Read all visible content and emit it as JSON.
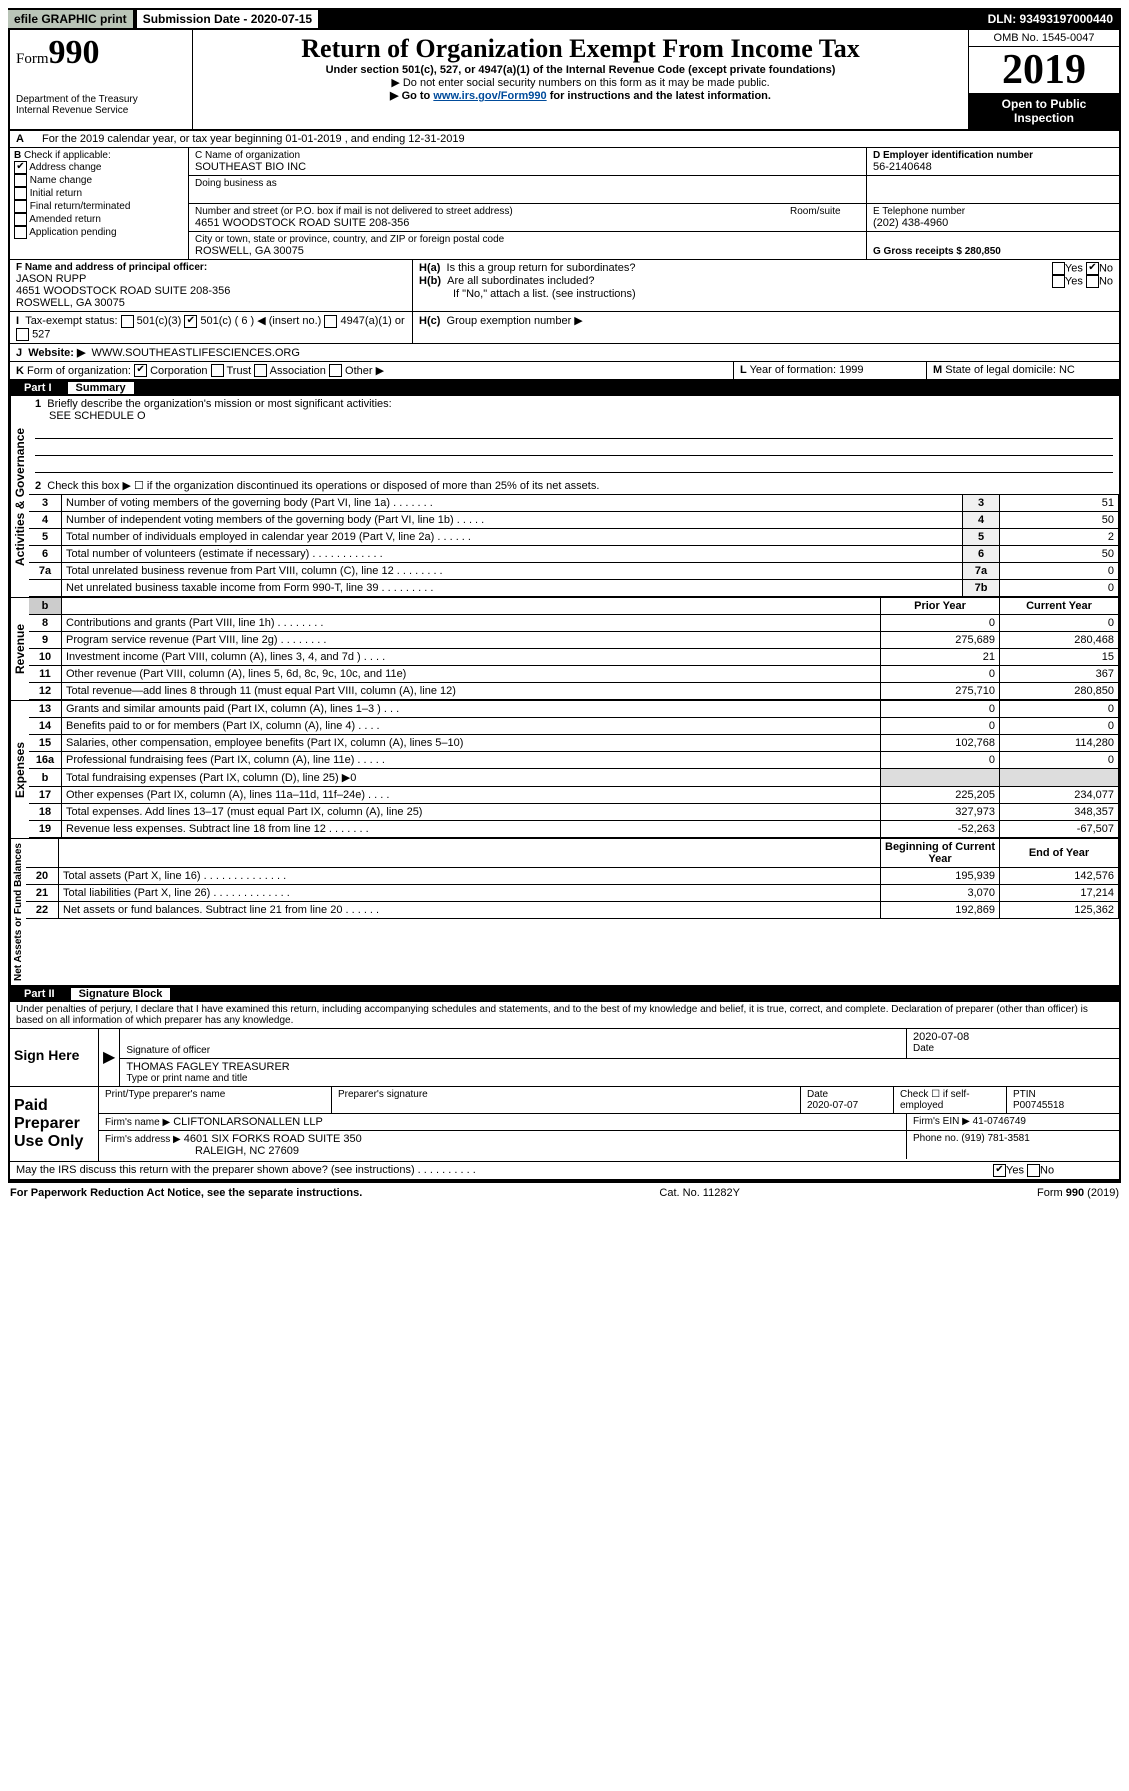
{
  "topbar": {
    "efile": "efile GRAPHIC print",
    "subdate_label": "Submission Date - 2020-07-15",
    "dln": "DLN: 93493197000440"
  },
  "header": {
    "form_label": "Form",
    "form_num": "990",
    "dept": "Department of the Treasury",
    "irs": "Internal Revenue Service",
    "title": "Return of Organization Exempt From Income Tax",
    "sub": "Under section 501(c), 527, or 4947(a)(1) of the Internal Revenue Code (except private foundations)",
    "sub2": "▶ Do not enter social security numbers on this form as it may be made public.",
    "sub3a": "▶ Go to ",
    "sub3b": "www.irs.gov/Form990",
    "sub3c": " for instructions and the latest information.",
    "omb": "OMB No. 1545-0047",
    "year": "2019",
    "open1": "Open to Public",
    "open2": "Inspection"
  },
  "A": {
    "text": "For the 2019 calendar year, or tax year beginning 01-01-2019   , and ending 12-31-2019"
  },
  "B": {
    "label": "Check if applicable:",
    "items": [
      {
        "label": "Address change",
        "checked": true
      },
      {
        "label": "Name change",
        "checked": false
      },
      {
        "label": "Initial return",
        "checked": false
      },
      {
        "label": "Final return/terminated",
        "checked": false
      },
      {
        "label": "Amended return",
        "checked": false
      },
      {
        "label": "Application pending",
        "checked": false
      }
    ]
  },
  "C": {
    "name_label": "C Name of organization",
    "name": "SOUTHEAST BIO INC",
    "dba_label": "Doing business as",
    "street_label": "Number and street (or P.O. box if mail is not delivered to street address)",
    "room_label": "Room/suite",
    "street": "4651 WOODSTOCK ROAD SUITE 208-356",
    "city_label": "City or town, state or province, country, and ZIP or foreign postal code",
    "city": "ROSWELL, GA  30075"
  },
  "D": {
    "label": "D Employer identification number",
    "value": "56-2140648"
  },
  "E": {
    "label": "E Telephone number",
    "value": "(202) 438-4960"
  },
  "G": {
    "label": "G Gross receipts $ 280,850"
  },
  "F": {
    "label": "F  Name and address of principal officer:",
    "name": "JASON RUPP",
    "addr1": "4651 WOODSTOCK ROAD SUITE 208-356",
    "addr2": "ROSWELL, GA  30075"
  },
  "H": {
    "a": "Is this a group return for subordinates?",
    "b": "Are all subordinates included?",
    "b2": "If \"No,\" attach a list. (see instructions)",
    "c": "Group exemption number ▶"
  },
  "I": {
    "label": "Tax-exempt status:",
    "opts": [
      "501(c)(3)",
      "501(c) ( 6 ) ◀ (insert no.)",
      "4947(a)(1) or",
      "527"
    ]
  },
  "J": {
    "label": "Website: ▶",
    "value": "WWW.SOUTHEASTLIFESCIENCES.ORG"
  },
  "K": {
    "label": "Form of organization:",
    "opts": [
      "Corporation",
      "Trust",
      "Association",
      "Other ▶"
    ]
  },
  "L": {
    "label": "Year of formation: 1999"
  },
  "M": {
    "label": "State of legal domicile: NC"
  },
  "part1": {
    "num": "Part I",
    "title": "Summary",
    "line1_label": "Briefly describe the organization's mission or most significant activities:",
    "line1_value": "SEE SCHEDULE O",
    "line2": "Check this box ▶ ☐  if the organization discontinued its operations or disposed of more than 25% of its net assets.",
    "sections": {
      "ag": "Activities & Governance",
      "rev": "Revenue",
      "exp": "Expenses",
      "na": "Net Assets or Fund Balances"
    },
    "rows_ag": [
      {
        "n": "3",
        "d": "Number of voting members of the governing body (Part VI, line 1a)  .   .   .   .   .   .   .",
        "b": "3",
        "v": "51"
      },
      {
        "n": "4",
        "d": "Number of independent voting members of the governing body (Part VI, line 1b)  .   .   .   .   .",
        "b": "4",
        "v": "50"
      },
      {
        "n": "5",
        "d": "Total number of individuals employed in calendar year 2019 (Part V, line 2a)  .   .   .   .   .   .",
        "b": "5",
        "v": "2"
      },
      {
        "n": "6",
        "d": "Total number of volunteers (estimate if necessary)  .   .   .   .   .   .   .   .   .   .   .   .",
        "b": "6",
        "v": "50"
      },
      {
        "n": "7a",
        "d": "Total unrelated business revenue from Part VIII, column (C), line 12  .   .   .   .   .   .   .   .",
        "b": "7a",
        "v": "0"
      },
      {
        "n": "",
        "d": "Net unrelated business taxable income from Form 990-T, line 39  .   .   .   .   .   .   .   .   .",
        "b": "7b",
        "v": "0"
      }
    ],
    "header_py": "Prior Year",
    "header_cy": "Current Year",
    "rows_rev": [
      {
        "n": "8",
        "d": "Contributions and grants (Part VIII, line 1h)  .   .   .   .   .   .   .   .",
        "py": "0",
        "cy": "0"
      },
      {
        "n": "9",
        "d": "Program service revenue (Part VIII, line 2g)  .   .   .   .   .   .   .   .",
        "py": "275,689",
        "cy": "280,468"
      },
      {
        "n": "10",
        "d": "Investment income (Part VIII, column (A), lines 3, 4, and 7d )  .   .   .   .",
        "py": "21",
        "cy": "15"
      },
      {
        "n": "11",
        "d": "Other revenue (Part VIII, column (A), lines 5, 6d, 8c, 9c, 10c, and 11e)",
        "py": "0",
        "cy": "367"
      },
      {
        "n": "12",
        "d": "Total revenue—add lines 8 through 11 (must equal Part VIII, column (A), line 12)",
        "py": "275,710",
        "cy": "280,850"
      }
    ],
    "rows_exp": [
      {
        "n": "13",
        "d": "Grants and similar amounts paid (Part IX, column (A), lines 1–3 )  .   .   .",
        "py": "0",
        "cy": "0"
      },
      {
        "n": "14",
        "d": "Benefits paid to or for members (Part IX, column (A), line 4)  .   .   .   .",
        "py": "0",
        "cy": "0"
      },
      {
        "n": "15",
        "d": "Salaries, other compensation, employee benefits (Part IX, column (A), lines 5–10)",
        "py": "102,768",
        "cy": "114,280"
      },
      {
        "n": "16a",
        "d": "Professional fundraising fees (Part IX, column (A), line 11e)  .   .   .   .   .",
        "py": "0",
        "cy": "0"
      },
      {
        "n": "b",
        "d": "Total fundraising expenses (Part IX, column (D), line 25) ▶0",
        "py": "",
        "cy": ""
      },
      {
        "n": "17",
        "d": "Other expenses (Part IX, column (A), lines 11a–11d, 11f–24e)  .   .   .   .",
        "py": "225,205",
        "cy": "234,077"
      },
      {
        "n": "18",
        "d": "Total expenses. Add lines 13–17 (must equal Part IX, column (A), line 25)",
        "py": "327,973",
        "cy": "348,357"
      },
      {
        "n": "19",
        "d": "Revenue less expenses. Subtract line 18 from line 12  .   .   .   .   .   .   .",
        "py": "-52,263",
        "cy": "-67,507"
      }
    ],
    "header_bcy": "Beginning of Current Year",
    "header_eoy": "End of Year",
    "rows_na": [
      {
        "n": "20",
        "d": "Total assets (Part X, line 16)  .   .   .   .   .   .   .   .   .   .   .   .   .   .",
        "py": "195,939",
        "cy": "142,576"
      },
      {
        "n": "21",
        "d": "Total liabilities (Part X, line 26)  .   .   .   .   .   .   .   .   .   .   .   .   .",
        "py": "3,070",
        "cy": "17,214"
      },
      {
        "n": "22",
        "d": "Net assets or fund balances. Subtract line 21 from line 20  .   .   .   .   .   .",
        "py": "192,869",
        "cy": "125,362"
      }
    ]
  },
  "part2": {
    "num": "Part II",
    "title": "Signature Block",
    "perjury": "Under penalties of perjury, I declare that I have examined this return, including accompanying schedules and statements, and to the best of my knowledge and belief, it is true, correct, and complete. Declaration of preparer (other than officer) is based on all information of which preparer has any knowledge.",
    "sign_here": "Sign Here",
    "sig_officer": "Signature of officer",
    "sig_date": "2020-07-08",
    "sig_date_label": "Date",
    "name_title": "THOMAS FAGLEY  TREASURER",
    "name_title_label": "Type or print name and title",
    "paid": "Paid Preparer Use Only",
    "prep_name_label": "Print/Type preparer's name",
    "prep_sig_label": "Preparer's signature",
    "prep_date_label": "Date",
    "prep_date": "2020-07-07",
    "check_self": "Check ☐ if self-employed",
    "ptin_label": "PTIN",
    "ptin": "P00745518",
    "firm_name_label": "Firm's name    ▶",
    "firm_name": "CLIFTONLARSONALLEN LLP",
    "firm_ein_label": "Firm's EIN ▶",
    "firm_ein": "41-0746749",
    "firm_addr_label": "Firm's address ▶",
    "firm_addr1": "4601 SIX FORKS ROAD SUITE 350",
    "firm_addr2": "RALEIGH, NC  27609",
    "phone_label": "Phone no. (919) 781-3581",
    "discuss": "May the IRS discuss this return with the preparer shown above? (see instructions)  .   .   .   .   .   .   .   .   .   ."
  },
  "footer": {
    "left": "For Paperwork Reduction Act Notice, see the separate instructions.",
    "mid": "Cat. No. 11282Y",
    "right": "Form 990 (2019)"
  }
}
